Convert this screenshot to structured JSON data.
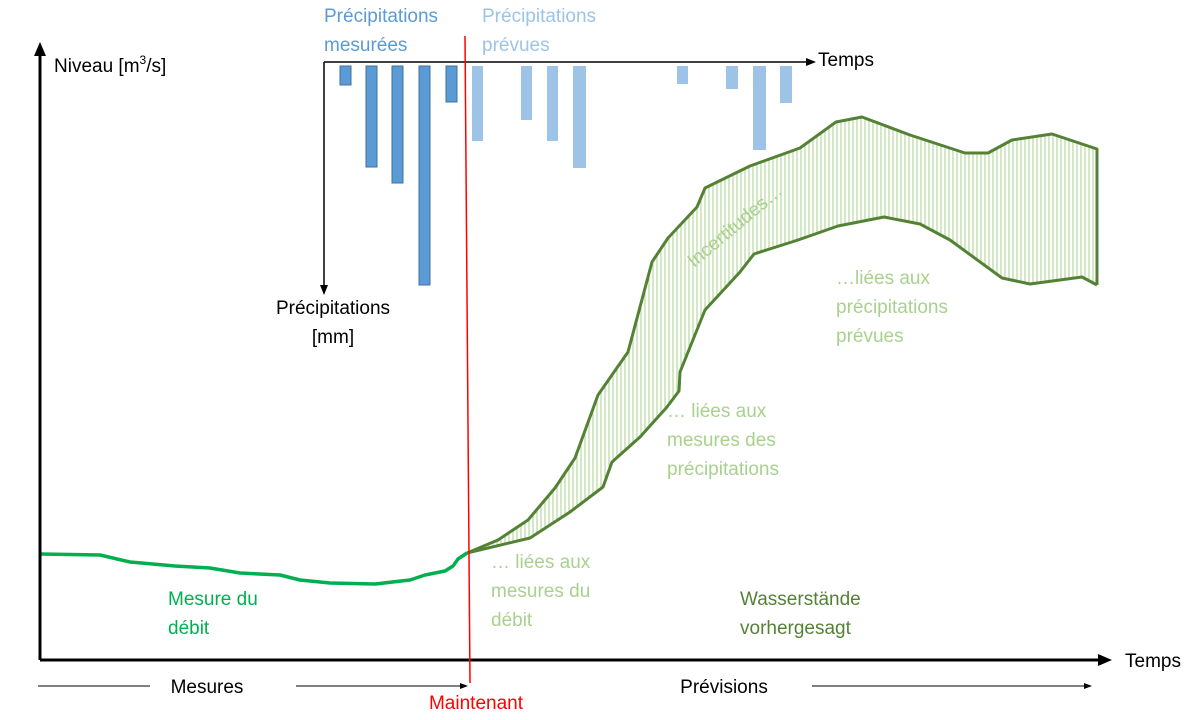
{
  "axes": {
    "y_label": "Niveau [m",
    "y_label_sup": "3",
    "y_label_end": "/s]",
    "x_label": "Temps",
    "precip_time_label": "Temps",
    "precip_axis_label_line1": "Précipitations",
    "precip_axis_label_line2": "[mm]"
  },
  "legend": {
    "measured_precip_line1": "Précipitations",
    "measured_precip_line2": "mesurées",
    "forecast_precip_line1": "Précipitations",
    "forecast_precip_line2": "prévues"
  },
  "annotations": {
    "uncertainties": "Incertitudes…",
    "forecast_precip_line1": "…liées aux",
    "forecast_precip_line2": "précipitations",
    "forecast_precip_line3": "prévues",
    "measured_precip_line1": "… liées aux",
    "measured_precip_line2": "mesures des",
    "measured_precip_line3": "précipitations",
    "discharge_line1": "… liées aux",
    "discharge_line2": "mesures du",
    "discharge_line3": "débit",
    "measured_discharge_line1": "Mesure du",
    "measured_discharge_line2": "débit",
    "forecast_levels_line1": "Wasserstände",
    "forecast_levels_line2": "vorhergesagt"
  },
  "timeline": {
    "past": "Mesures",
    "now": "Maintenant",
    "future": "Prévisions"
  },
  "colors": {
    "measured_precip": "#5b9bd5",
    "forecast_precip": "#9dc3e6",
    "measured_discharge": "#00b050",
    "forecast_band": "#548235",
    "band_hatch": "#a9d18e",
    "now_line": "#ff0000",
    "axis": "#000000"
  },
  "precipitation": {
    "measured_bars": [
      1,
      5,
      6,
      11,
      2
    ],
    "forecast_bars": [
      4,
      3,
      4,
      5,
      1,
      1,
      4,
      2
    ]
  }
}
